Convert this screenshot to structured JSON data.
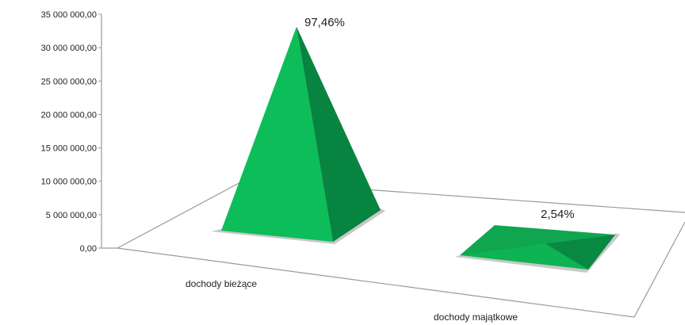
{
  "chart_data": {
    "type": "pyramid-3d",
    "categories": [
      "dochody bieżące",
      "dochody majątkowe"
    ],
    "series": [
      {
        "values": [
          34100000,
          890000
        ],
        "data_labels": [
          "97,46%",
          "2,54%"
        ]
      }
    ],
    "yticks": [
      "0,00",
      "5 000 000,00",
      "10 000 000,00",
      "15 000 000,00",
      "20 000 000,00",
      "25 000 000,00",
      "30 000 000,00",
      "35 000 000,00"
    ],
    "ylim": [
      0,
      35000000
    ],
    "grid": false,
    "legend": "none",
    "colors": {
      "front": "#0dbd59",
      "side": "#07843f",
      "top": "#10a64f",
      "floor_shadow": "#c8c8c8",
      "axis": "#9a9a9a"
    }
  }
}
